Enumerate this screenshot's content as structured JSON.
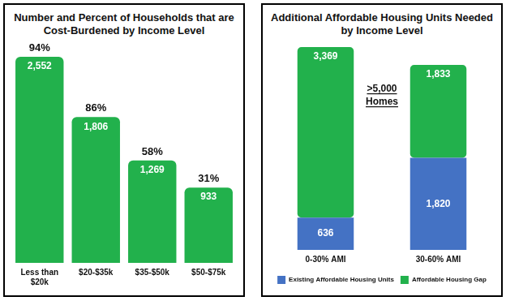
{
  "chart_data": [
    {
      "type": "bar",
      "title": "Number and Percent of Households that are Cost-Burdened by Income Level",
      "categories": [
        "Less than $20k",
        "$20-$35k",
        "$35-$50k",
        "$50-$75k"
      ],
      "values": [
        2552,
        1806,
        1269,
        933
      ],
      "value_labels": [
        "2,552",
        "1,806",
        "1,269",
        "933"
      ],
      "percent_labels": [
        "94%",
        "86%",
        "58%",
        "31%"
      ],
      "color": "#22b14c",
      "ylim": [
        0,
        2552
      ],
      "grid": false,
      "data_labels": true,
      "tick_labels": "x"
    },
    {
      "type": "bar",
      "title": "Additional Affordable Housing Units Needed by Income Level",
      "categories": [
        "0-30% AMI",
        "30-60% AMI"
      ],
      "series": [
        {
          "name": "Existing Affordable Housing Units",
          "color": "#4472c4",
          "values": [
            636,
            1820
          ],
          "value_labels": [
            "636",
            "1,820"
          ]
        },
        {
          "name": "Affordable Housing Gap",
          "color": "#22b14c",
          "values": [
            3369,
            1833
          ],
          "value_labels": [
            "3,369",
            "1,833"
          ]
        }
      ],
      "stacked": true,
      "ylim": [
        0,
        4005
      ],
      "grid": false,
      "data_labels": true,
      "tick_labels": "x",
      "legend": "bottom",
      "annotation": ">5,000 Homes"
    }
  ]
}
